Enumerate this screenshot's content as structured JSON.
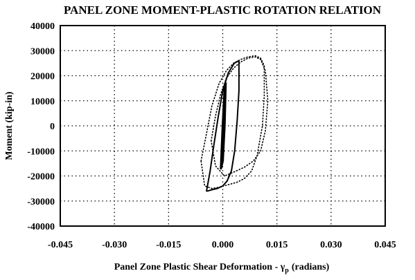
{
  "chart_data": {
    "type": "line",
    "title": "PANEL ZONE MOMENT-PLASTIC ROTATION RELATION",
    "xlabel": "Panel Zone Plastic Shear Deformation - γ",
    "xlabel_sub": "p",
    "xlabel_unit": "(radians)",
    "ylabel": "Moment (kip-in)",
    "xlim": [
      -0.045,
      0.045
    ],
    "ylim": [
      -40000,
      40000
    ],
    "grid": "dotted",
    "x_ticks": [
      -0.045,
      -0.03,
      -0.015,
      0.0,
      0.015,
      0.03,
      0.045
    ],
    "x_tick_labels": [
      "-0.045",
      "-0.030",
      "-0.015",
      "0.000",
      "0.015",
      "0.030",
      "0.045"
    ],
    "y_ticks": [
      40000,
      30000,
      20000,
      10000,
      0,
      -10000,
      -20000,
      -30000,
      -40000
    ],
    "y_tick_labels": [
      "40000",
      "30000",
      "20000",
      "10000",
      "0",
      "-10000",
      "-20000",
      "-30000",
      "-40000"
    ],
    "series": [
      {
        "style": "solid",
        "x": [
          -0.0045,
          -0.0035,
          -0.0025,
          -0.0012,
          0.0,
          0.0015,
          0.0032,
          0.0045,
          0.0045,
          0.004,
          0.0033,
          0.0024,
          0.0012,
          0.0,
          -0.0015,
          -0.003,
          -0.0042,
          -0.0045
        ],
        "y": [
          -26000,
          -18000,
          -8000,
          4000,
          14000,
          21000,
          25000,
          26000,
          14000,
          2000,
          -10000,
          -18000,
          -22000,
          -24000,
          -25000,
          -25500,
          -26000,
          -26000
        ]
      },
      {
        "style": "solid-thick",
        "x": [
          -0.0005,
          0.0,
          0.0005,
          0.0008,
          0.0005,
          0.0,
          -0.0005
        ],
        "y": [
          -17000,
          0,
          14000,
          17000,
          0,
          -14000,
          -17000
        ]
      },
      {
        "style": "dotted",
        "x": [
          -0.006,
          -0.0045,
          -0.003,
          -0.001,
          0.001,
          0.003,
          0.005,
          0.007,
          0.009,
          0.0105,
          0.0115,
          0.0115,
          0.011,
          0.0095,
          0.008,
          0.006,
          0.004,
          0.0015,
          -0.001,
          -0.003,
          -0.005,
          -0.006
        ],
        "y": [
          -14000,
          -3000,
          8000,
          17000,
          22000,
          25000,
          26500,
          27500,
          28000,
          27000,
          24000,
          12000,
          0,
          -12000,
          -18000,
          -21000,
          -22500,
          -23500,
          -24500,
          -25000,
          -24000,
          -14000
        ]
      },
      {
        "style": "dotted",
        "x": [
          -0.0032,
          -0.002,
          -0.0005,
          0.001,
          0.003,
          0.005,
          0.007,
          0.009,
          0.0105,
          0.0118,
          0.0125,
          0.0118,
          0.0105,
          0.0085,
          0.006,
          0.003,
          0.0005,
          -0.002,
          -0.0032
        ],
        "y": [
          -6000,
          4000,
          13000,
          19000,
          23000,
          25500,
          27000,
          27500,
          26500,
          22000,
          10000,
          -2000,
          -10000,
          -14000,
          -16500,
          -18500,
          -20000,
          -16000,
          -6000
        ]
      }
    ]
  }
}
